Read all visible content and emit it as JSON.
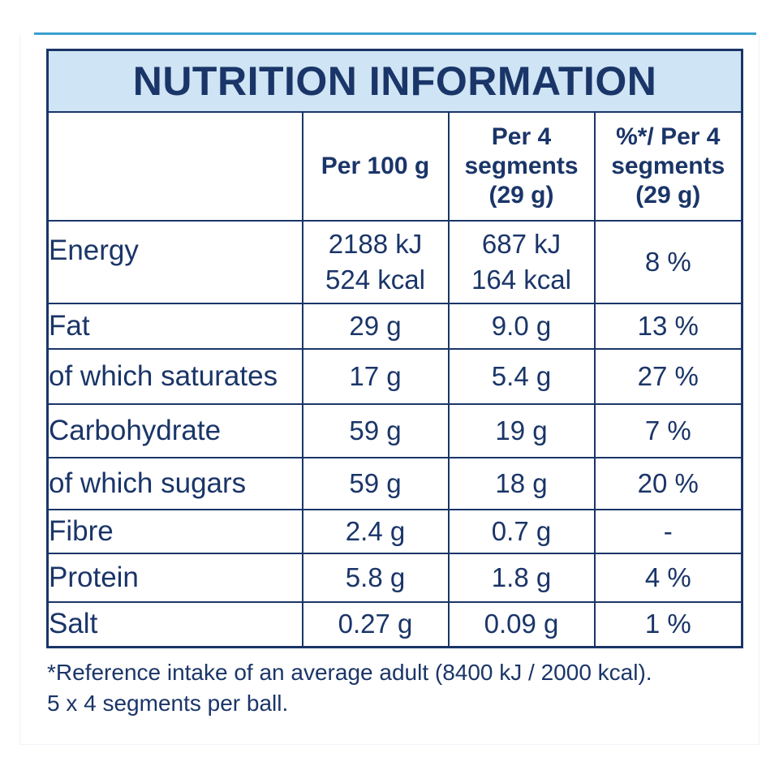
{
  "title": "NUTRITION INFORMATION",
  "columns": {
    "per100_label": "Per 100 g",
    "per_serving_label": [
      "Per 4",
      "segments",
      "(29 g)"
    ],
    "ri_label": [
      "%*/ Per 4",
      "segments",
      "(29 g)"
    ]
  },
  "rows": [
    {
      "label": "Energy",
      "per100": [
        "2188 kJ",
        "524 kcal"
      ],
      "per_serving": [
        "687 kJ",
        "164 kcal"
      ],
      "ri": "8 %"
    },
    {
      "label": "Fat",
      "per100": "29 g",
      "per_serving": "9.0 g",
      "ri": "13 %"
    },
    {
      "label": "of which saturates",
      "per100": "17 g",
      "per_serving": "5.4 g",
      "ri": "27 %"
    },
    {
      "label": "Carbohydrate",
      "per100": "59 g",
      "per_serving": "19 g",
      "ri": "7 %"
    },
    {
      "label": "of which sugars",
      "per100": "59 g",
      "per_serving": "18 g",
      "ri": "20 %"
    },
    {
      "label": "Fibre",
      "per100": "2.4 g",
      "per_serving": "0.7 g",
      "ri": "-"
    },
    {
      "label": "Protein",
      "per100": "5.8 g",
      "per_serving": "1.8 g",
      "ri": "4 %"
    },
    {
      "label": "Salt",
      "per100": "0.27 g",
      "per_serving": "0.09 g",
      "ri": "1 %"
    }
  ],
  "footnote": [
    "*Reference intake of an average adult (8400 kJ / 2000 kcal).",
    "5 x 4 segments per ball."
  ],
  "colors": {
    "text": "#1a3568",
    "title_bg": "#cfe4f4",
    "accent_rule": "#3a9fd0"
  }
}
